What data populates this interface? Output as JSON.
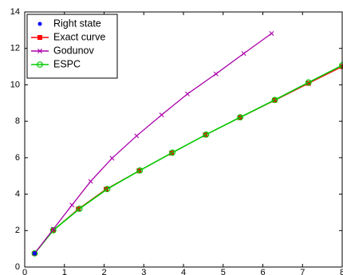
{
  "chart_data": {
    "type": "line",
    "title": "",
    "xlabel": "",
    "ylabel": "",
    "xlim": [
      0,
      8
    ],
    "ylim": [
      0,
      14
    ],
    "xticks": [
      "0",
      "1",
      "2",
      "3",
      "4",
      "5",
      "6",
      "7",
      "8"
    ],
    "yticks": [
      "0",
      "2",
      "4",
      "6",
      "8",
      "10",
      "12",
      "14"
    ],
    "grid": false,
    "legend_position": "top-left",
    "series": [
      {
        "name": "Right state",
        "color": "#0000ff",
        "marker": "dot",
        "line": false,
        "x": [
          0.25
        ],
        "y": [
          0.75
        ]
      },
      {
        "name": "Exact curve",
        "color": "#ff0000",
        "marker": "square",
        "line": true,
        "x": [
          0.25,
          0.72,
          1.35,
          2.05,
          2.88,
          3.7,
          4.55,
          5.42,
          6.3,
          7.15,
          8.0
        ],
        "y": [
          0.75,
          2.02,
          3.18,
          4.27,
          5.28,
          6.25,
          7.25,
          8.2,
          9.15,
          10.08,
          11.0
        ]
      },
      {
        "name": "Godunov",
        "color": "#aa00aa",
        "marker": "x",
        "line": true,
        "x": [
          0.25,
          0.72,
          1.19,
          1.66,
          2.2,
          2.82,
          3.45,
          4.1,
          4.82,
          5.52,
          6.22
        ],
        "y": [
          0.75,
          2.08,
          3.4,
          4.7,
          5.97,
          7.2,
          8.35,
          9.5,
          10.6,
          11.72,
          12.82
        ]
      },
      {
        "name": "ESPC",
        "color": "#00cc00",
        "marker": "circle",
        "line": true,
        "x": [
          0.25,
          0.72,
          1.38,
          2.08,
          2.9,
          3.72,
          4.57,
          5.43,
          6.3,
          7.15,
          8.0
        ],
        "y": [
          0.75,
          2.02,
          3.2,
          4.28,
          5.3,
          6.28,
          7.27,
          8.22,
          9.17,
          10.13,
          11.07
        ]
      }
    ]
  }
}
